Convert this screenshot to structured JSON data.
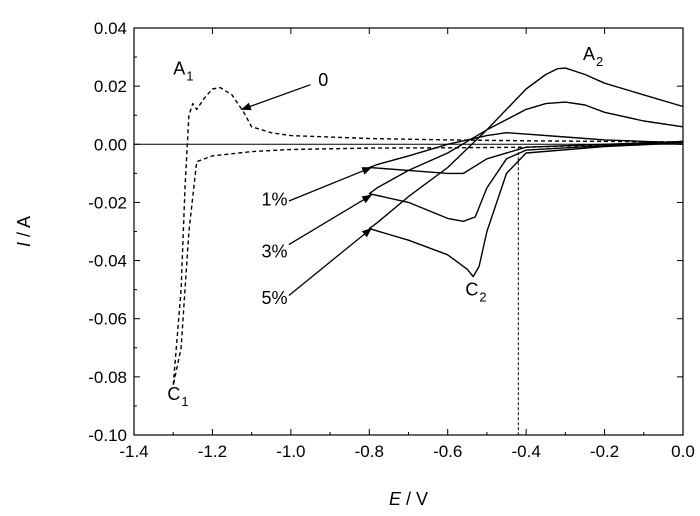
{
  "chart_data": {
    "type": "line",
    "title": "",
    "xlabel": {
      "italic": "E",
      "rest": " / V"
    },
    "ylabel": {
      "italic": "I",
      "rest": " / A"
    },
    "xlim": [
      -1.4,
      0.0
    ],
    "ylim": [
      -0.1,
      0.04
    ],
    "x_ticks": [
      -1.4,
      -1.2,
      -1.0,
      -0.8,
      -0.6,
      -0.4,
      -0.2,
      0.0
    ],
    "x_tick_labels": [
      "-1.4",
      "-1.2",
      "-1.0",
      "-0.8",
      "-0.6",
      "-0.4",
      "-0.2",
      "0.0"
    ],
    "y_ticks": [
      0.04,
      0.02,
      0.0,
      -0.02,
      -0.04,
      -0.06,
      -0.08,
      -0.1
    ],
    "y_tick_labels": [
      "0.04",
      "0.02",
      "0.00",
      "-0.02",
      "-0.04",
      "-0.06",
      "-0.08",
      "-0.10"
    ],
    "grid": false,
    "zero_line": 0.0,
    "vertical_marker_x": -0.42,
    "series": [
      {
        "name": "0",
        "dashed": true,
        "points": [
          [
            0.0,
            0.001
          ],
          [
            -0.2,
            -0.0002
          ],
          [
            -0.4,
            -0.001
          ],
          [
            -0.6,
            -0.0012
          ],
          [
            -0.8,
            -0.0013
          ],
          [
            -1.0,
            -0.0018
          ],
          [
            -1.1,
            -0.0025
          ],
          [
            -1.2,
            -0.004
          ],
          [
            -1.24,
            -0.006
          ],
          [
            -1.26,
            -0.03
          ],
          [
            -1.28,
            -0.07
          ],
          [
            -1.3,
            -0.083
          ],
          [
            -1.28,
            -0.05
          ],
          [
            -1.27,
            -0.015
          ],
          [
            -1.26,
            0.01
          ],
          [
            -1.25,
            0.014
          ],
          [
            -1.24,
            0.012
          ],
          [
            -1.22,
            0.016
          ],
          [
            -1.2,
            0.019
          ],
          [
            -1.18,
            0.0195
          ],
          [
            -1.15,
            0.017
          ],
          [
            -1.12,
            0.011
          ],
          [
            -1.1,
            0.006
          ],
          [
            -1.05,
            0.004
          ],
          [
            -1.0,
            0.003
          ],
          [
            -0.8,
            0.002
          ],
          [
            -0.6,
            0.0015
          ],
          [
            -0.4,
            0.0012
          ],
          [
            -0.2,
            0.001
          ],
          [
            0.0,
            0.0008
          ]
        ]
      },
      {
        "name": "1%",
        "dashed": false,
        "points": [
          [
            0.0,
            0.001
          ],
          [
            -0.2,
            0.0
          ],
          [
            -0.4,
            -0.001
          ],
          [
            -0.5,
            -0.005
          ],
          [
            -0.56,
            -0.01
          ],
          [
            -0.6,
            -0.01
          ],
          [
            -0.7,
            -0.009
          ],
          [
            -0.8,
            -0.008
          ],
          [
            -0.78,
            -0.007
          ],
          [
            -0.7,
            -0.004
          ],
          [
            -0.6,
            0.0
          ],
          [
            -0.5,
            0.003
          ],
          [
            -0.45,
            0.004
          ],
          [
            -0.4,
            0.0035
          ],
          [
            -0.3,
            0.0025
          ],
          [
            -0.2,
            0.0015
          ],
          [
            0.0,
            0.0005
          ]
        ]
      },
      {
        "name": "3%",
        "dashed": false,
        "points": [
          [
            0.0,
            0.0008
          ],
          [
            -0.2,
            -0.0005
          ],
          [
            -0.4,
            -0.002
          ],
          [
            -0.45,
            -0.005
          ],
          [
            -0.5,
            -0.015
          ],
          [
            -0.53,
            -0.025
          ],
          [
            -0.56,
            -0.0265
          ],
          [
            -0.6,
            -0.0255
          ],
          [
            -0.7,
            -0.02
          ],
          [
            -0.8,
            -0.017
          ],
          [
            -0.78,
            -0.015
          ],
          [
            -0.7,
            -0.009
          ],
          [
            -0.6,
            -0.003
          ],
          [
            -0.5,
            0.005
          ],
          [
            -0.4,
            0.012
          ],
          [
            -0.35,
            0.014
          ],
          [
            -0.3,
            0.0145
          ],
          [
            -0.25,
            0.0135
          ],
          [
            -0.2,
            0.011
          ],
          [
            -0.1,
            0.008
          ],
          [
            0.0,
            0.006
          ]
        ]
      },
      {
        "name": "5%",
        "dashed": false,
        "points": [
          [
            0.0,
            0.0005
          ],
          [
            -0.2,
            -0.0008
          ],
          [
            -0.4,
            -0.003
          ],
          [
            -0.45,
            -0.01
          ],
          [
            -0.5,
            -0.03
          ],
          [
            -0.52,
            -0.042
          ],
          [
            -0.535,
            -0.0455
          ],
          [
            -0.55,
            -0.043
          ],
          [
            -0.6,
            -0.038
          ],
          [
            -0.7,
            -0.033
          ],
          [
            -0.8,
            -0.029
          ],
          [
            -0.78,
            -0.027
          ],
          [
            -0.7,
            -0.018
          ],
          [
            -0.6,
            -0.008
          ],
          [
            -0.5,
            0.005
          ],
          [
            -0.4,
            0.019
          ],
          [
            -0.35,
            0.024
          ],
          [
            -0.32,
            0.026
          ],
          [
            -0.3,
            0.0262
          ],
          [
            -0.25,
            0.024
          ],
          [
            -0.2,
            0.021
          ],
          [
            -0.1,
            0.017
          ],
          [
            0.0,
            0.013
          ]
        ]
      }
    ],
    "annotations": [
      {
        "id": "A1",
        "main": "A",
        "sub": "1",
        "x": -1.3,
        "y": 0.024
      },
      {
        "id": "A2",
        "main": "A",
        "sub": "2",
        "x": -0.255,
        "y": 0.029
      },
      {
        "id": "C1",
        "main": "C",
        "sub": "1",
        "x": -1.315,
        "y": -0.088
      },
      {
        "id": "C2",
        "main": "C",
        "sub": "2",
        "x": -0.555,
        "y": -0.052
      },
      {
        "id": "L0",
        "main": "0",
        "sub": "",
        "x": -0.93,
        "y": 0.02
      },
      {
        "id": "L1",
        "main": "1%",
        "sub": "",
        "x": -1.075,
        "y": -0.021
      },
      {
        "id": "L3",
        "main": "3%",
        "sub": "",
        "x": -1.075,
        "y": -0.039
      },
      {
        "id": "L5",
        "main": "5%",
        "sub": "",
        "x": -1.075,
        "y": -0.055
      }
    ],
    "arrows": [
      {
        "id": "arrow-0",
        "from": [
          -0.95,
          0.0205
        ],
        "to": [
          -1.125,
          0.012
        ]
      },
      {
        "id": "arrow-1",
        "from": [
          -1.005,
          -0.0195
        ],
        "to": [
          -0.795,
          -0.008
        ]
      },
      {
        "id": "arrow-3",
        "from": [
          -1.005,
          -0.0345
        ],
        "to": [
          -0.795,
          -0.0175
        ]
      },
      {
        "id": "arrow-5",
        "from": [
          -1.005,
          -0.052
        ],
        "to": [
          -0.795,
          -0.029
        ]
      }
    ]
  }
}
